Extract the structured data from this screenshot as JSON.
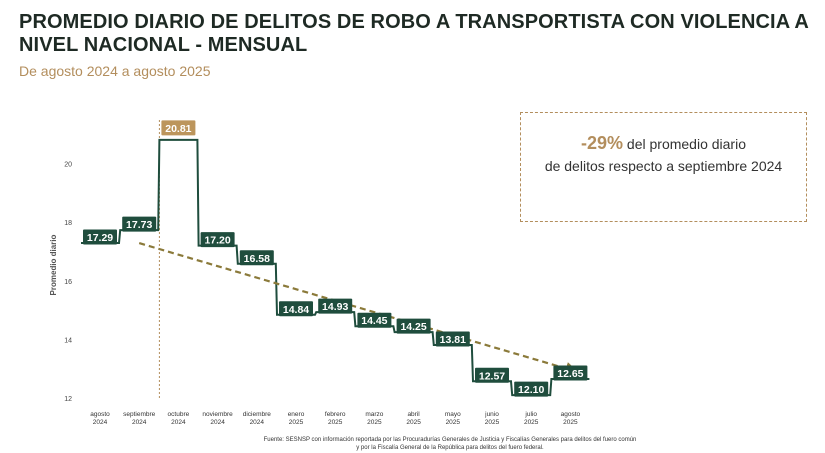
{
  "header": {
    "title": "PROMEDIO DIARIO DE DELITOS DE ROBO A TRANSPORTISTA CON VIOLENCIA A NIVEL NACIONAL - MENSUAL",
    "subtitle": "De agosto 2024 a agosto 2025"
  },
  "callout": {
    "percent": "-29%",
    "text_1": " del promedio diario",
    "text_2": "de delitos respecto a septiembre 2024"
  },
  "source": {
    "line_1": "Fuente: SESNSP con información reportada por las Procuradurías Generales de Justicia y Fiscalías Generales para delitos del fuero común",
    "line_2": "y por la Fiscalía General de la República para delitos del fuero federal."
  },
  "colors": {
    "primary": "#1f4d3d",
    "accent": "#b38e5d",
    "highlight": "#bc955c"
  },
  "chart_data": {
    "type": "line",
    "step": true,
    "ylabel": "Promedio diario",
    "ylim": [
      12,
      21
    ],
    "yticks": [
      12,
      14,
      16,
      18,
      20
    ],
    "categories": [
      [
        "agosto",
        "2024"
      ],
      [
        "septiembre",
        "2024"
      ],
      [
        "octubre",
        "2024"
      ],
      [
        "noviembre",
        "2024"
      ],
      [
        "diciembre",
        "2024"
      ],
      [
        "enero",
        "2025"
      ],
      [
        "febrero",
        "2025"
      ],
      [
        "marzo",
        "2025"
      ],
      [
        "abril",
        "2025"
      ],
      [
        "mayo",
        "2025"
      ],
      [
        "junio",
        "2025"
      ],
      [
        "julio",
        "2025"
      ],
      [
        "agosto",
        "2025"
      ]
    ],
    "values": [
      17.29,
      17.73,
      20.81,
      17.2,
      16.58,
      14.84,
      14.93,
      14.45,
      14.25,
      13.81,
      12.57,
      12.1,
      12.65
    ],
    "labels": [
      "17.29",
      "17.73",
      "20.81",
      "17.20",
      "16.58",
      "14.84",
      "14.93",
      "14.45",
      "14.25",
      "13.81",
      "12.57",
      "12.10",
      "12.65"
    ],
    "highlight_index": 2,
    "trend": {
      "from_index": 1,
      "to_index": 12
    }
  }
}
